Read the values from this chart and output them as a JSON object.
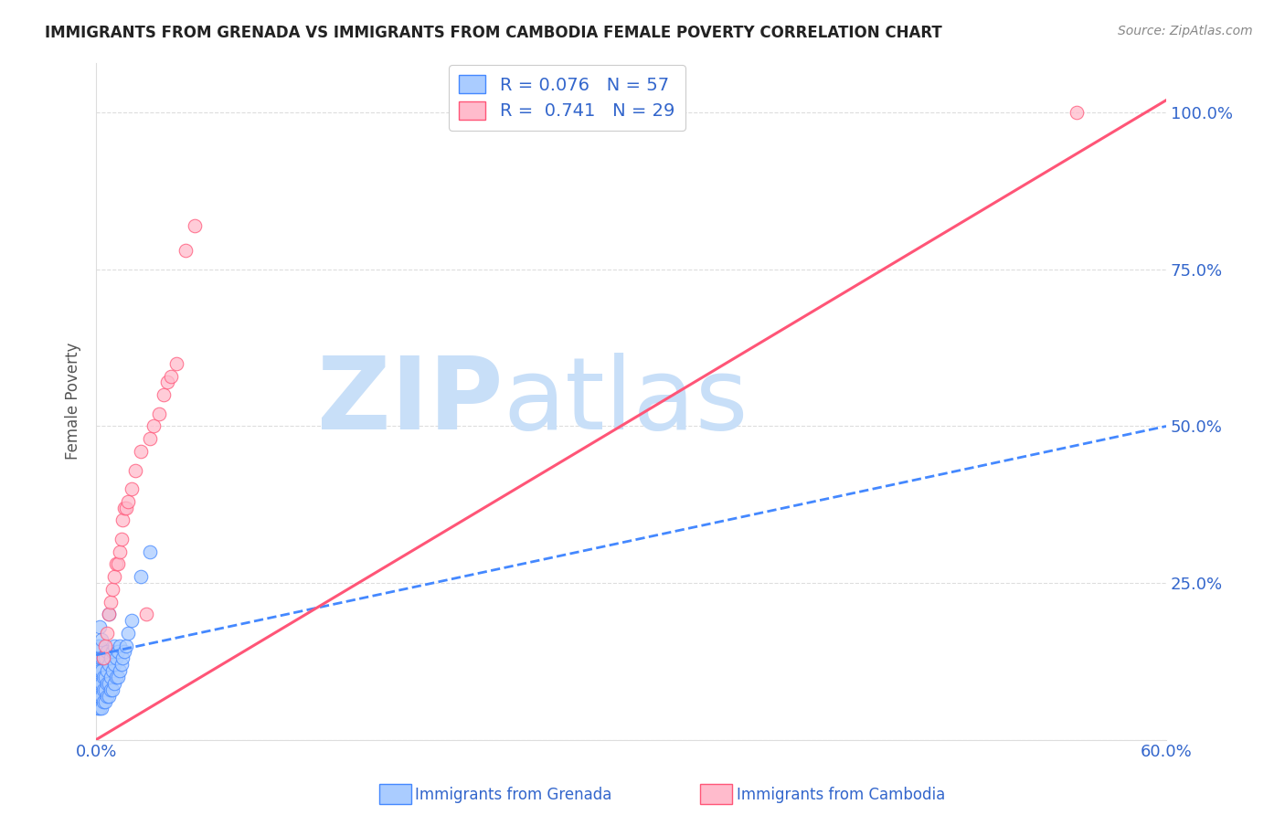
{
  "title": "IMMIGRANTS FROM GRENADA VS IMMIGRANTS FROM CAMBODIA FEMALE POVERTY CORRELATION CHART",
  "source": "Source: ZipAtlas.com",
  "xlabel_grenada": "Immigrants from Grenada",
  "xlabel_cambodia": "Immigrants from Cambodia",
  "ylabel": "Female Poverty",
  "x_min": 0.0,
  "x_max": 0.6,
  "y_min": 0.0,
  "y_max": 1.08,
  "x_ticks": [
    0.0,
    0.1,
    0.2,
    0.3,
    0.4,
    0.5,
    0.6
  ],
  "x_tick_labels": [
    "0.0%",
    "",
    "",
    "",
    "",
    "",
    "60.0%"
  ],
  "y_ticks": [
    0.0,
    0.25,
    0.5,
    0.75,
    1.0
  ],
  "y_tick_labels": [
    "",
    "25.0%",
    "50.0%",
    "75.0%",
    "100.0%"
  ],
  "grenada_R": 0.076,
  "grenada_N": 57,
  "cambodia_R": 0.741,
  "cambodia_N": 29,
  "grenada_color": "#aaccff",
  "cambodia_color": "#ffbbcc",
  "grenada_line_color": "#4488ff",
  "cambodia_line_color": "#ff5577",
  "background_color": "#ffffff",
  "watermark_zip_color": "#c8dff8",
  "watermark_atlas_color": "#c8dff8",
  "grenada_x": [
    0.001,
    0.001,
    0.001,
    0.001,
    0.001,
    0.002,
    0.002,
    0.002,
    0.002,
    0.002,
    0.002,
    0.002,
    0.003,
    0.003,
    0.003,
    0.003,
    0.003,
    0.003,
    0.004,
    0.004,
    0.004,
    0.004,
    0.005,
    0.005,
    0.005,
    0.005,
    0.006,
    0.006,
    0.006,
    0.006,
    0.007,
    0.007,
    0.007,
    0.007,
    0.008,
    0.008,
    0.008,
    0.009,
    0.009,
    0.009,
    0.01,
    0.01,
    0.01,
    0.011,
    0.011,
    0.012,
    0.012,
    0.013,
    0.013,
    0.014,
    0.015,
    0.016,
    0.017,
    0.018,
    0.02,
    0.025,
    0.03
  ],
  "grenada_y": [
    0.05,
    0.08,
    0.1,
    0.12,
    0.15,
    0.05,
    0.07,
    0.09,
    0.11,
    0.13,
    0.15,
    0.18,
    0.05,
    0.07,
    0.09,
    0.11,
    0.13,
    0.16,
    0.06,
    0.08,
    0.1,
    0.13,
    0.06,
    0.08,
    0.1,
    0.13,
    0.07,
    0.09,
    0.11,
    0.14,
    0.07,
    0.09,
    0.12,
    0.2,
    0.08,
    0.1,
    0.13,
    0.08,
    0.11,
    0.14,
    0.09,
    0.12,
    0.15,
    0.1,
    0.13,
    0.1,
    0.14,
    0.11,
    0.15,
    0.12,
    0.13,
    0.14,
    0.15,
    0.17,
    0.19,
    0.26,
    0.3
  ],
  "cambodia_x": [
    0.004,
    0.005,
    0.006,
    0.007,
    0.008,
    0.009,
    0.01,
    0.011,
    0.012,
    0.013,
    0.014,
    0.015,
    0.016,
    0.017,
    0.018,
    0.02,
    0.022,
    0.025,
    0.028,
    0.03,
    0.032,
    0.035,
    0.038,
    0.04,
    0.042,
    0.045,
    0.05,
    0.055,
    0.55
  ],
  "cambodia_y": [
    0.13,
    0.15,
    0.17,
    0.2,
    0.22,
    0.24,
    0.26,
    0.28,
    0.28,
    0.3,
    0.32,
    0.35,
    0.37,
    0.37,
    0.38,
    0.4,
    0.43,
    0.46,
    0.2,
    0.48,
    0.5,
    0.52,
    0.55,
    0.57,
    0.58,
    0.6,
    0.78,
    0.82,
    1.0
  ],
  "grenada_trendline_x": [
    0.0,
    0.6
  ],
  "grenada_trendline_y": [
    0.135,
    0.5
  ],
  "cambodia_trendline_x": [
    0.0,
    0.6
  ],
  "cambodia_trendline_y": [
    0.0,
    1.02
  ]
}
